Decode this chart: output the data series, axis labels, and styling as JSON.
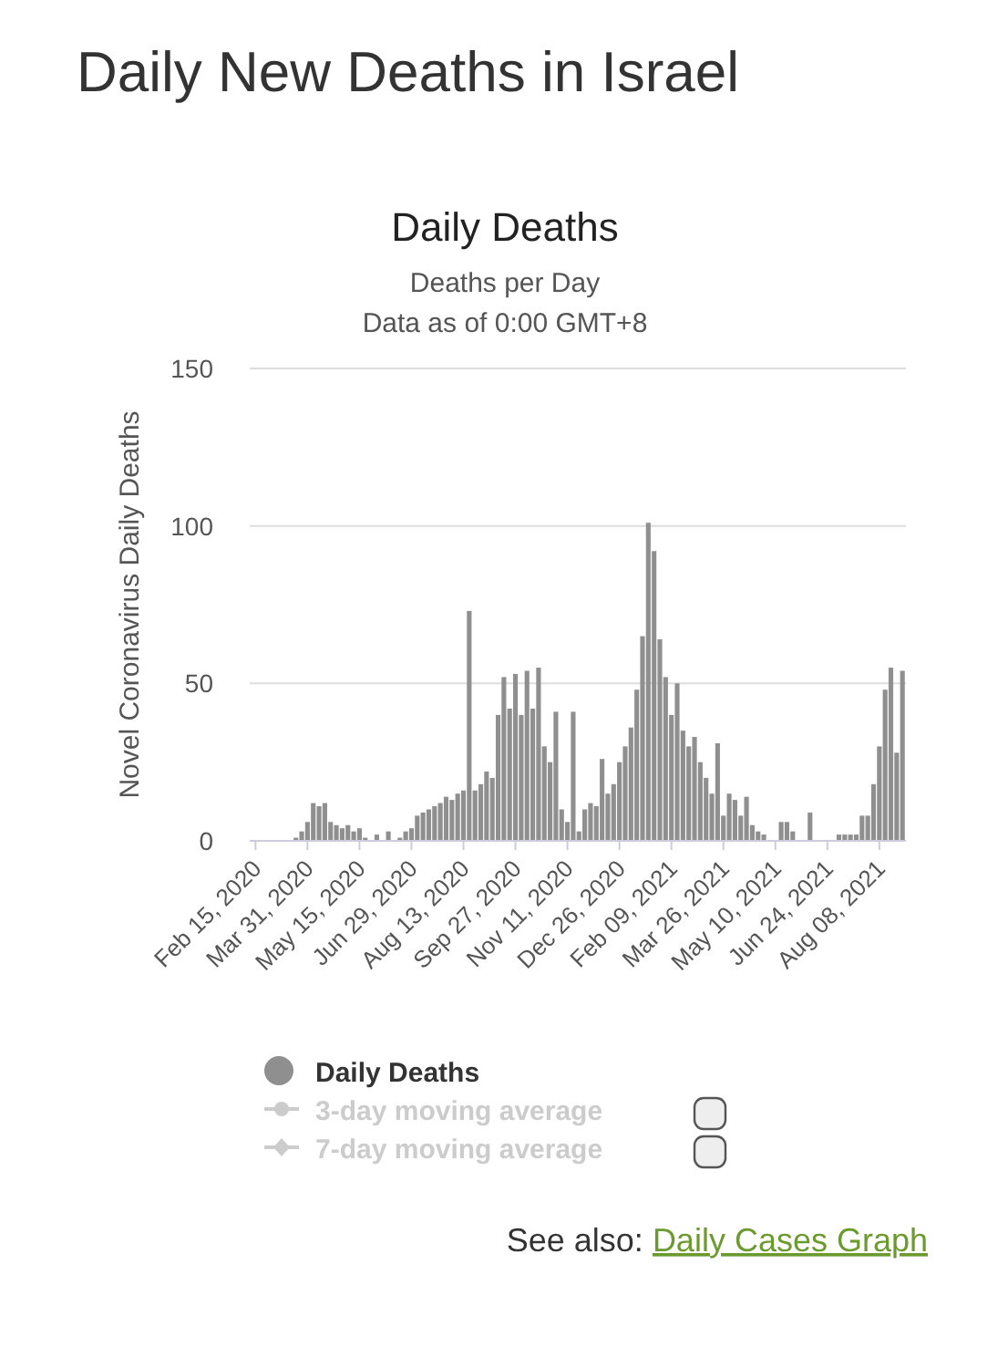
{
  "chart_data": {
    "type": "bar",
    "title": "Daily Deaths",
    "subtitle": "Deaths per Day\nData as of 0:00 GMT+8",
    "ylabel": "Novel Coronavirus Daily Deaths",
    "annotations": [
      "Daily New Deaths in Israel",
      "3-day moving average",
      "7-day moving average",
      "See also:",
      "Daily Cases Graph"
    ],
    "x": [
      "2020-02-15",
      "2020-02-20",
      "2020-02-25",
      "2020-03-01",
      "2020-03-06",
      "2020-03-11",
      "2020-03-16",
      "2020-03-21",
      "2020-03-26",
      "2020-03-31",
      "2020-04-05",
      "2020-04-10",
      "2020-04-15",
      "2020-04-20",
      "2020-04-25",
      "2020-04-30",
      "2020-05-05",
      "2020-05-10",
      "2020-05-15",
      "2020-05-20",
      "2020-05-25",
      "2020-05-30",
      "2020-06-04",
      "2020-06-09",
      "2020-06-14",
      "2020-06-19",
      "2020-06-24",
      "2020-06-29",
      "2020-07-04",
      "2020-07-09",
      "2020-07-14",
      "2020-07-19",
      "2020-07-24",
      "2020-07-29",
      "2020-08-03",
      "2020-08-08",
      "2020-08-13",
      "2020-08-18",
      "2020-08-23",
      "2020-08-28",
      "2020-09-02",
      "2020-09-07",
      "2020-09-12",
      "2020-09-17",
      "2020-09-22",
      "2020-09-27",
      "2020-10-02",
      "2020-10-07",
      "2020-10-12",
      "2020-10-17",
      "2020-10-22",
      "2020-10-27",
      "2020-11-01",
      "2020-11-06",
      "2020-11-11",
      "2020-11-16",
      "2020-11-21",
      "2020-11-26",
      "2020-12-01",
      "2020-12-06",
      "2020-12-11",
      "2020-12-16",
      "2020-12-21",
      "2020-12-26",
      "2020-12-31",
      "2021-01-05",
      "2021-01-10",
      "2021-01-15",
      "2021-01-20",
      "2021-01-25",
      "2021-01-30",
      "2021-02-04",
      "2021-02-09",
      "2021-02-14",
      "2021-02-19",
      "2021-02-24",
      "2021-03-01",
      "2021-03-06",
      "2021-03-11",
      "2021-03-16",
      "2021-03-21",
      "2021-03-26",
      "2021-03-31",
      "2021-04-05",
      "2021-04-10",
      "2021-04-15",
      "2021-04-20",
      "2021-04-25",
      "2021-04-30",
      "2021-05-05",
      "2021-05-10",
      "2021-05-15",
      "2021-05-20",
      "2021-05-25",
      "2021-05-30",
      "2021-06-04",
      "2021-06-09",
      "2021-06-14",
      "2021-06-19",
      "2021-06-24",
      "2021-06-29",
      "2021-07-04",
      "2021-07-09",
      "2021-07-14",
      "2021-07-19",
      "2021-07-24",
      "2021-07-29",
      "2021-08-03",
      "2021-08-08",
      "2021-08-13",
      "2021-08-18",
      "2021-08-23",
      "2021-08-28"
    ],
    "series": [
      {
        "name": "Daily Deaths",
        "color": "#8f8f8f",
        "values": [
          0,
          0,
          0,
          0,
          0,
          0,
          0,
          1,
          3,
          6,
          12,
          11,
          12,
          6,
          5,
          4,
          5,
          3,
          4,
          1,
          0,
          2,
          0,
          3,
          0,
          1,
          3,
          4,
          8,
          9,
          10,
          11,
          12,
          14,
          13,
          15,
          16,
          73,
          16,
          18,
          22,
          20,
          40,
          52,
          42,
          53,
          40,
          54,
          42,
          55,
          30,
          25,
          41,
          10,
          6,
          41,
          3,
          10,
          12,
          11,
          26,
          15,
          18,
          25,
          30,
          36,
          48,
          65,
          101,
          92,
          64,
          52,
          40,
          50,
          35,
          30,
          33,
          25,
          20,
          15,
          31,
          8,
          15,
          13,
          8,
          14,
          5,
          3,
          2,
          0,
          0,
          6,
          6,
          3,
          0,
          0,
          9,
          0,
          0,
          0,
          0,
          2,
          2,
          2,
          2,
          8,
          8,
          18,
          30,
          48,
          55,
          28,
          54
        ]
      }
    ],
    "xlim": [
      "2020-02-10",
      "2021-08-31"
    ],
    "xticks": [
      {
        "value": "2020-02-15",
        "label": "Feb 15, 2020"
      },
      {
        "value": "2020-03-31",
        "label": "Mar 31, 2020"
      },
      {
        "value": "2020-05-15",
        "label": "May 15, 2020"
      },
      {
        "value": "2020-06-29",
        "label": "Jun 29, 2020"
      },
      {
        "value": "2020-08-13",
        "label": "Aug 13, 2020"
      },
      {
        "value": "2020-09-27",
        "label": "Sep 27, 2020"
      },
      {
        "value": "2020-11-11",
        "label": "Nov 11, 2020"
      },
      {
        "value": "2020-12-26",
        "label": "Dec 26, 2020"
      },
      {
        "value": "2021-02-09",
        "label": "Feb 09, 2021"
      },
      {
        "value": "2021-03-26",
        "label": "Mar 26, 2021"
      },
      {
        "value": "2021-05-10",
        "label": "May 10, 2021"
      },
      {
        "value": "2021-06-24",
        "label": "Jun 24, 2021"
      },
      {
        "value": "2021-08-08",
        "label": "Aug 08, 2021"
      }
    ],
    "ylim": [
      0,
      150
    ],
    "yticks": [
      0,
      50,
      100,
      150
    ],
    "grid": "y",
    "legend": "bottom"
  }
}
